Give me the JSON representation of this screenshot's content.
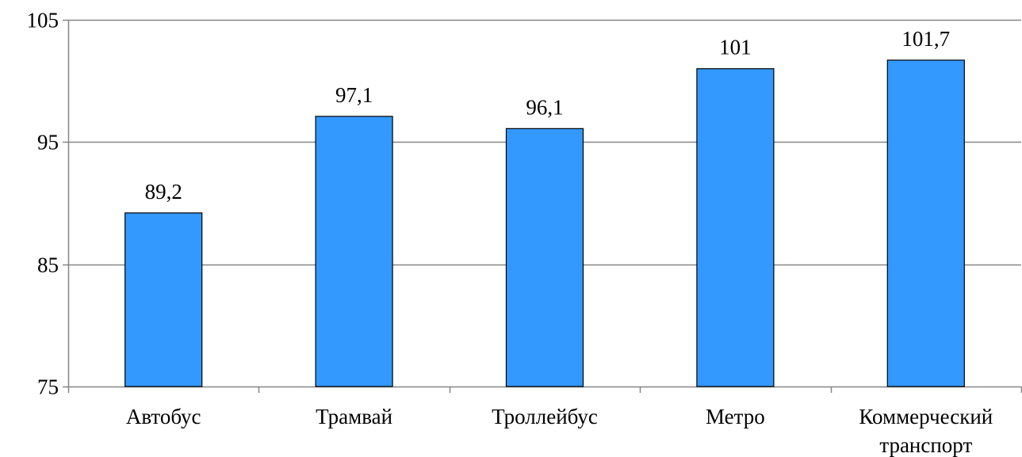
{
  "chart_data": {
    "type": "bar",
    "categories": [
      [
        "Автобус"
      ],
      [
        "Трамвай"
      ],
      [
        "Троллейбус"
      ],
      [
        "Метро"
      ],
      [
        "Коммерческий",
        "транспорт"
      ]
    ],
    "values": [
      89.2,
      97.1,
      96.1,
      101,
      101.7
    ],
    "value_labels": [
      "89,2",
      "97,1",
      "96,1",
      "101",
      "101,7"
    ],
    "ylim": [
      75,
      105
    ],
    "yticks": [
      75,
      85,
      95,
      105
    ],
    "ytick_labels": [
      "75",
      "85",
      "95",
      "105"
    ],
    "grid": true,
    "legend": "none",
    "bar_color": "#3399FF",
    "bar_edge_color": "#000000",
    "grid_color": "#868686"
  }
}
